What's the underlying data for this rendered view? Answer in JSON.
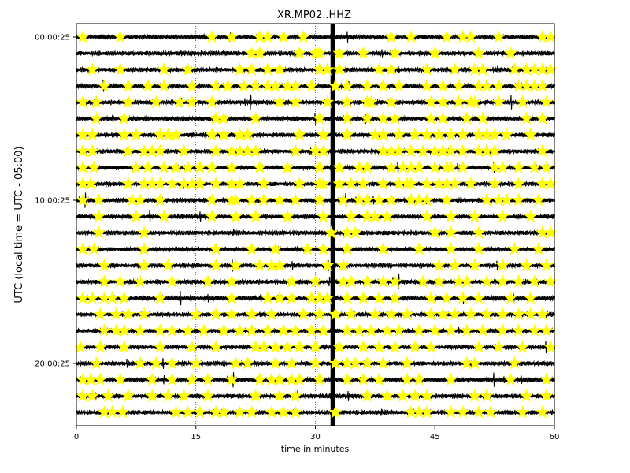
{
  "chart_data": {
    "type": "line",
    "title": "XR.MP02..HHZ",
    "xlabel": "time in minutes",
    "ylabel": "UTC (local time = UTC - 05:00)",
    "x_range": [
      0,
      60
    ],
    "x_ticks": [
      "0",
      "15",
      "30",
      "45",
      "60"
    ],
    "x_tick_values": [
      0,
      15,
      30,
      45,
      60
    ],
    "y_tick_labels": [
      "00:00:25",
      "10:00:25",
      "20:00:25"
    ],
    "y_tick_rows": [
      0,
      10,
      20
    ],
    "row_count": 24,
    "row_interval_minutes": 60,
    "grid": "vertical-dotted",
    "trace_color": "#000000",
    "marker_color": "#ffff00",
    "marker_shape": "star",
    "gap_marker_minute": 32.2,
    "event_markers_minutes": [
      [
        0.8,
        5.5,
        17,
        19.5,
        23,
        24,
        26,
        28.5,
        39.5,
        42,
        46.5,
        48.5,
        49.5,
        53,
        58.5,
        59.5
      ],
      [
        22,
        23,
        28,
        30,
        30.5,
        33,
        36,
        40,
        45,
        50.5,
        54.5
      ],
      [
        2,
        5.5,
        11,
        14,
        20.5,
        22,
        24,
        25.5,
        30.5,
        31.5,
        33,
        38,
        39.5,
        44,
        47.5,
        50,
        51,
        55,
        56.5,
        57.5,
        58.5,
        59.5
      ],
      [
        3.5,
        6.5,
        9,
        11,
        14.5,
        17.5,
        19,
        21,
        22.5,
        24,
        25,
        26.5,
        27.5,
        29.5,
        32.5,
        34,
        36.5,
        38.5,
        40.5,
        44,
        46,
        48,
        50.5,
        51.5,
        53,
        55.5,
        56.5,
        57.5,
        58.5
      ],
      [
        0.8,
        2.5,
        6.5,
        10,
        13,
        14.5,
        17,
        25.5,
        27.5,
        31.5,
        34,
        36.5,
        37,
        39.5,
        44.5,
        46,
        48,
        49.5,
        50,
        53,
        56,
        59
      ],
      [
        2.5,
        6,
        17.5,
        18.5,
        22.5,
        30.5,
        34,
        36.5,
        38.5,
        40,
        44.5,
        46,
        49,
        51,
        56.5,
        58.5
      ],
      [
        0.8,
        2,
        6,
        7.5,
        10.5,
        11.5,
        12.5,
        17,
        18.5,
        20.5,
        21.5,
        28,
        31,
        34,
        37.5,
        38.5,
        40.5,
        42.5,
        44,
        45.5,
        47,
        48.5,
        50.5,
        51.5,
        52.5,
        54,
        57
      ],
      [
        0.8,
        2,
        6.5,
        8.5,
        9.5,
        10.5,
        13.5,
        17.5,
        19.5,
        20.5,
        21.5,
        22.5,
        27.5,
        30,
        31,
        38.5,
        39.5,
        40.5,
        42,
        43.5,
        45,
        46,
        47,
        48.5,
        50.5,
        51.5,
        52.5,
        58.5
      ],
      [
        0.8,
        2.2,
        7.5,
        9,
        11,
        12.5,
        14,
        15.5,
        17,
        19.5,
        23,
        26.5,
        30.5,
        33,
        35.5,
        36.5,
        39.5,
        41,
        42,
        43,
        45,
        46.5,
        47,
        48.5,
        52.5,
        53.5,
        55.5,
        57.5,
        59
      ],
      [
        0.8,
        1.8,
        6.5,
        8.5,
        9.5,
        10.5,
        12,
        13.5,
        14.5,
        15.5,
        17.5,
        19.5,
        20.5,
        23.5,
        28,
        30.5,
        31,
        33,
        34.5,
        36,
        38.5,
        40.5,
        41.5,
        42,
        44,
        45.5,
        46.5,
        47.5,
        49.5,
        52.5,
        55.5,
        58.5,
        59.5
      ],
      [
        0.8,
        2.8,
        7,
        8,
        10.5,
        17,
        19.5,
        20,
        22,
        23.5,
        25.5,
        27.5,
        30.5,
        33.5,
        35.5,
        36.5,
        38,
        39.5,
        42,
        43,
        44,
        46.5,
        51.5,
        53,
        54,
        55.5,
        58
      ],
      [
        2.8,
        7.5,
        11,
        17,
        20,
        22.5,
        26.5,
        31,
        34.5,
        36.5,
        37.5,
        39,
        44,
        47,
        50,
        53.5,
        57
      ],
      [
        2.8,
        8.5,
        32,
        34,
        35,
        45,
        47,
        50.5,
        58.5,
        59.5
      ],
      [
        0.8,
        2.2,
        8.5,
        17.5,
        22,
        25,
        29,
        31,
        34,
        38.5,
        43,
        47,
        50.5,
        55,
        58
      ],
      [
        3.5,
        8.5,
        11.5,
        17.5,
        20,
        23,
        24.5,
        25.5,
        31.5,
        33.5,
        45.5,
        47.5,
        50,
        53.5,
        56.5,
        59
      ],
      [
        3.5,
        5.5,
        8,
        12,
        16.5,
        19.5,
        27,
        30,
        33.5,
        34.5,
        36.5,
        38.5,
        40,
        43.5,
        45.5,
        48,
        49,
        51.5,
        53.5,
        55.5,
        57.5,
        59.5
      ],
      [
        0.8,
        2,
        3.5,
        4.5,
        6,
        10.5,
        19.5,
        24,
        25.5,
        27,
        29.5,
        30.5,
        31.5,
        34,
        36,
        38,
        40,
        44.5,
        46.5,
        48.5,
        50.5,
        54.5,
        57
      ],
      [
        3,
        5,
        6.5,
        8.5,
        15,
        17.5,
        19.5,
        22,
        24.5,
        28.5,
        30.5,
        32.5,
        34.5,
        37.5,
        39.5,
        41.5,
        44.5,
        46,
        47.5,
        49.5,
        51.5,
        53.5,
        55.5,
        57,
        58.5
      ],
      [
        3.5,
        5,
        6,
        8,
        10.5,
        12,
        14,
        16,
        18.5,
        20.5,
        22,
        24,
        26,
        27.5,
        29.5,
        31,
        34,
        35.5,
        37,
        39,
        40.5,
        43,
        45,
        47,
        49,
        51,
        53.5,
        55.5,
        57.5,
        59
      ],
      [
        0.5,
        3,
        6,
        10.5,
        14.5,
        17.5,
        22.5,
        23.5,
        25,
        26.5,
        28,
        30,
        33,
        36,
        38,
        40,
        42.5,
        44.5,
        50.5,
        53,
        56,
        59.5
      ],
      [
        2.5,
        8,
        10,
        12,
        15,
        20,
        21.5,
        25,
        27,
        30,
        32.5,
        34,
        35,
        36.5,
        38.5,
        41.5,
        49,
        50,
        55
      ],
      [
        0.8,
        1.8,
        3,
        5.5,
        9.5,
        12,
        14.5,
        16.5,
        19.5,
        23,
        24.5,
        25.5,
        27,
        28,
        30.5,
        34,
        36,
        38,
        41.5,
        43,
        47,
        54.5,
        59
      ],
      [
        0.8,
        2,
        4,
        6.5,
        9.5,
        11.5,
        13.5,
        16.5,
        22.5,
        25.5,
        27.5,
        36.5,
        39,
        41,
        42.5,
        44,
        50,
        51.5,
        56.5,
        59
      ],
      [
        3.5,
        4.5,
        5.8,
        12.5,
        14,
        15.5,
        17.5,
        18.5,
        20.5,
        22,
        24.5,
        26,
        27.5,
        32.5,
        42,
        43,
        44,
        47,
        48.5,
        50.5,
        52,
        56,
        58.5
      ]
    ]
  }
}
